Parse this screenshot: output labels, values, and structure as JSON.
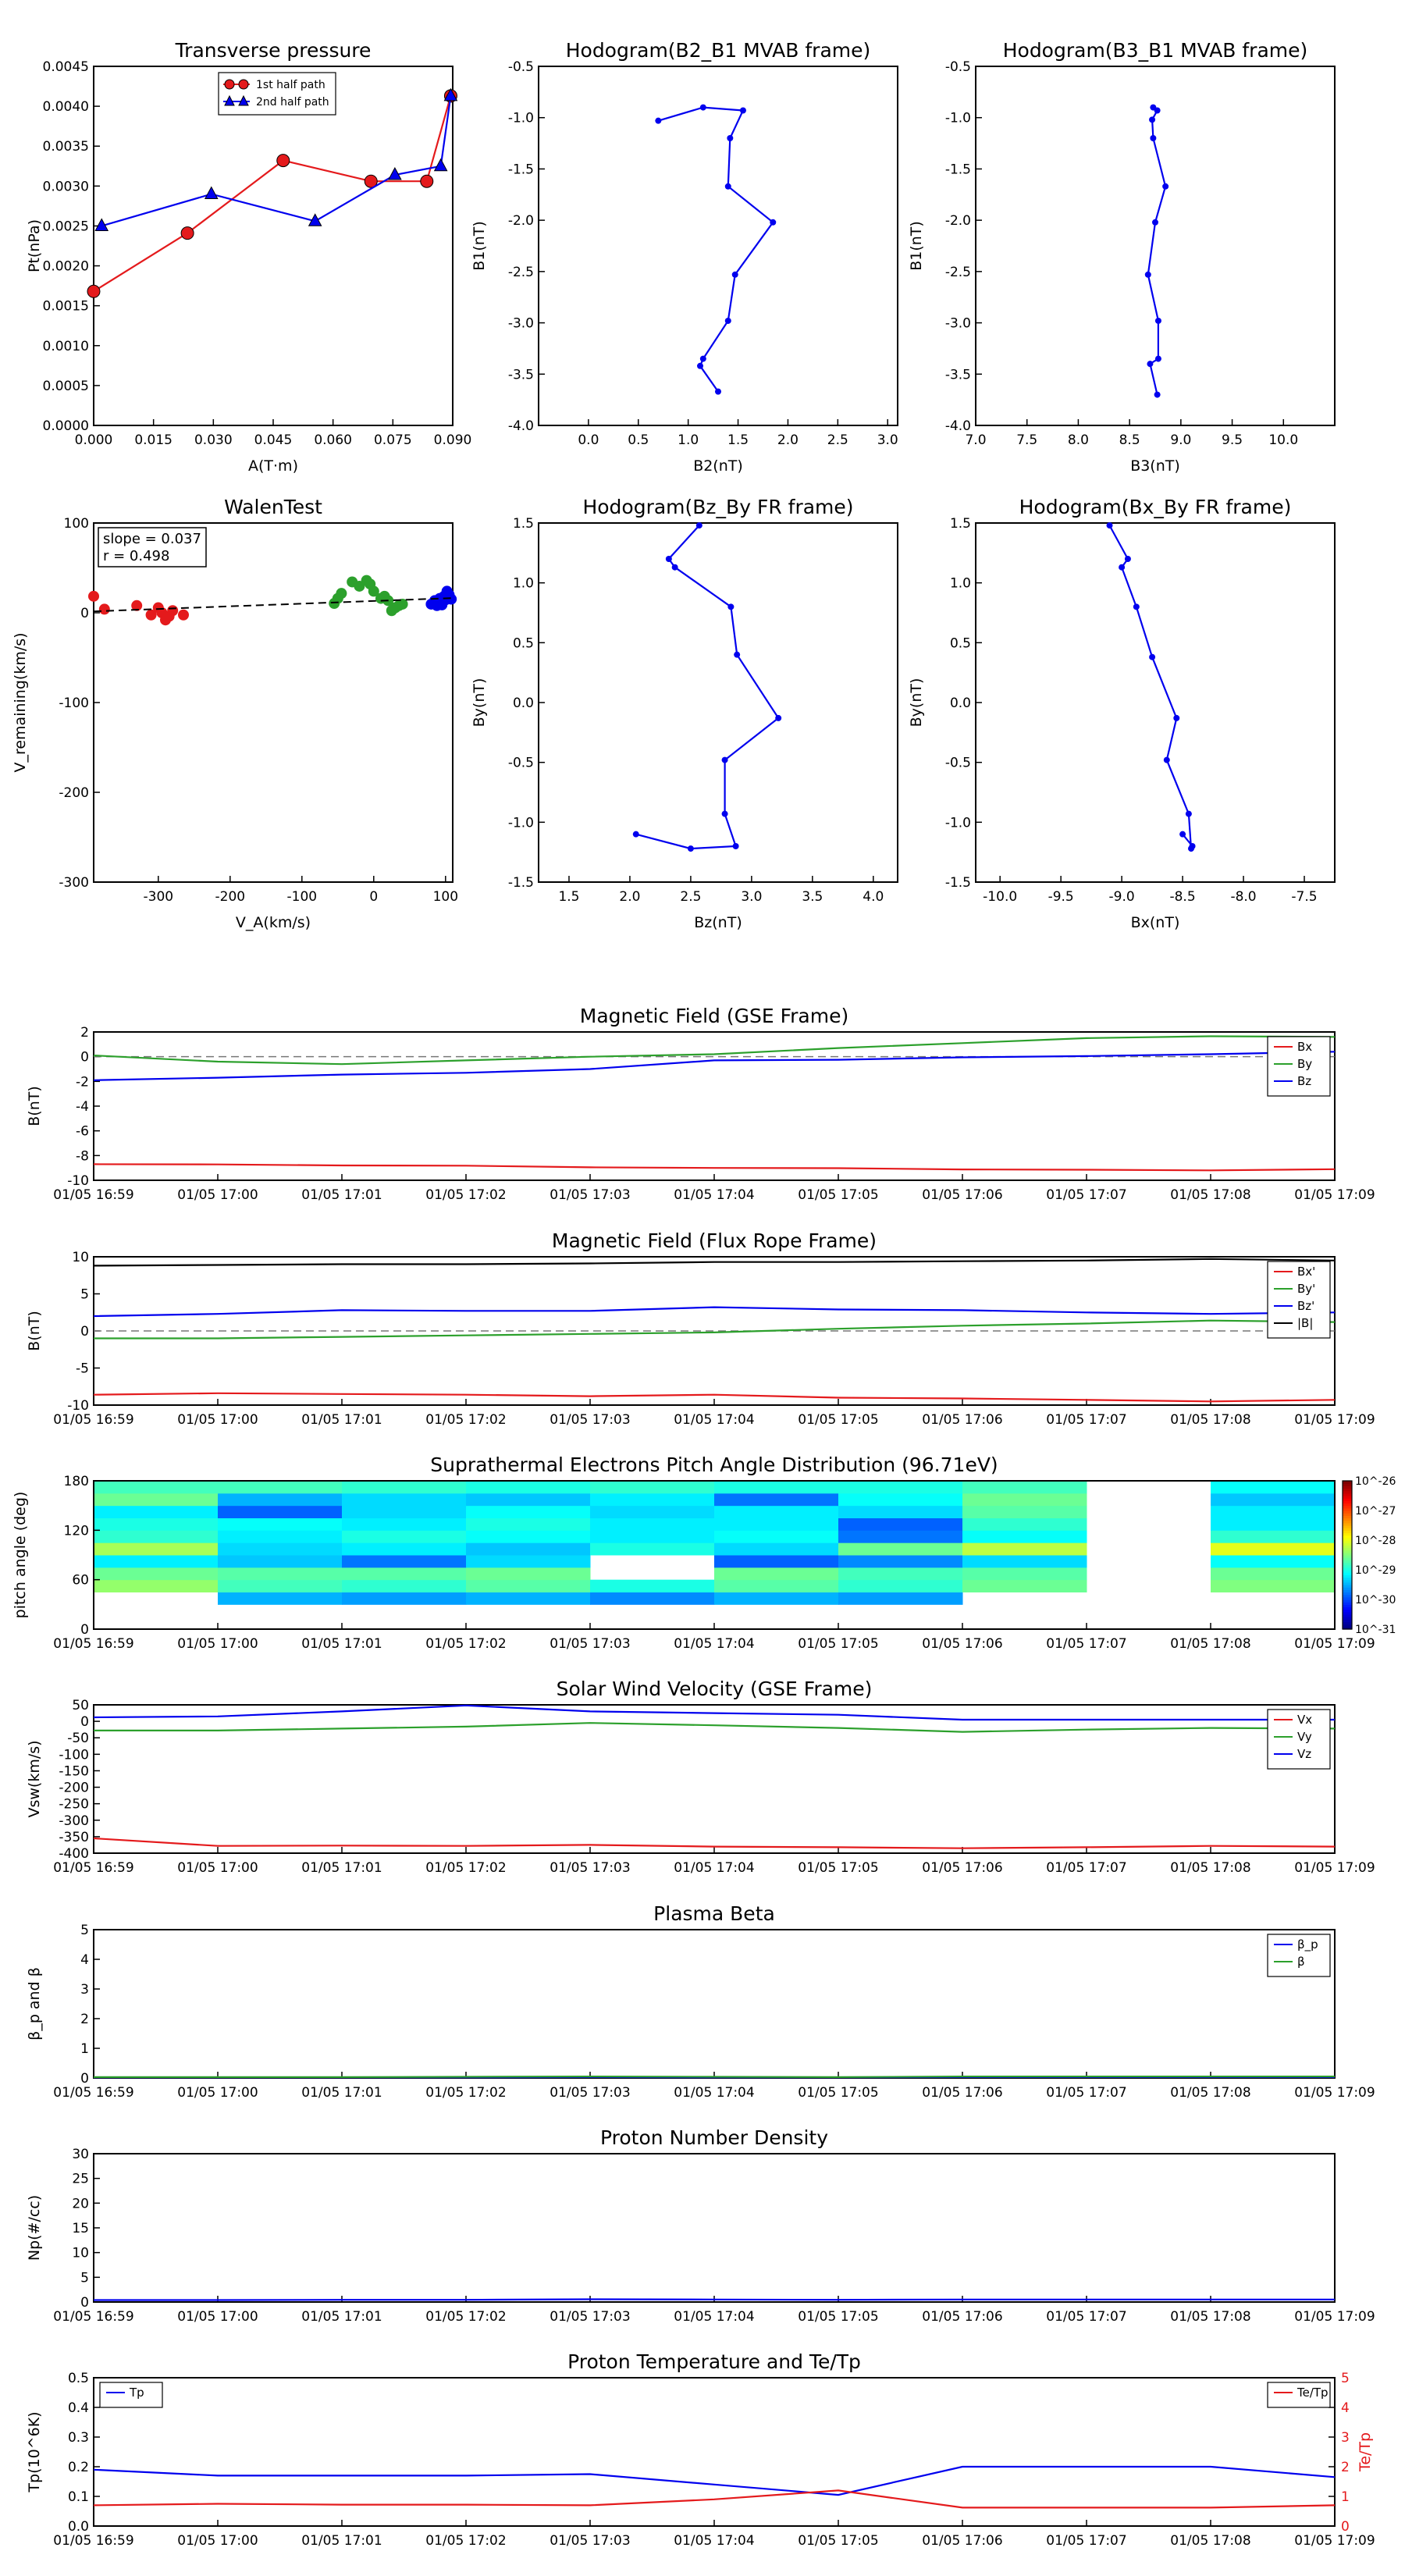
{
  "figure_title": "",
  "time_ticks": [
    "01/05 16:59",
    "01/05 17:00",
    "01/05 17:01",
    "01/05 17:02",
    "01/05 17:03",
    "01/05 17:04",
    "01/05 17:05",
    "01/05 17:06",
    "01/05 17:07",
    "01/05 17:08",
    "01/05 17:09"
  ],
  "chart_data": [
    {
      "id": "transverse-pressure",
      "type": "line",
      "title": "Transverse pressure",
      "xlabel": "A(T·m)",
      "ylabel": "Pt(nPa)",
      "xlim": [
        0,
        0.09
      ],
      "ylim": [
        0,
        0.0045
      ],
      "xticks": [
        "0.000",
        "0.015",
        "0.030",
        "0.045",
        "0.060",
        "0.075",
        "0.090"
      ],
      "yticks": [
        "0.0000",
        "0.0005",
        "0.0010",
        "0.0015",
        "0.0020",
        "0.0025",
        "0.0030",
        "0.0035",
        "0.0040",
        "0.0045"
      ],
      "legend_position": "top-center",
      "series": [
        {
          "name": "1st half path",
          "color": "#e41a1c",
          "marker": "circle",
          "x": [
            0.0,
            0.0235,
            0.0475,
            0.0695,
            0.0835,
            0.0895
          ],
          "y": [
            0.00168,
            0.00241,
            0.00332,
            0.00306,
            0.00306,
            0.00413
          ]
        },
        {
          "name": "2nd half path",
          "color": "#0000ee",
          "marker": "triangle",
          "x": [
            0.002,
            0.0295,
            0.0555,
            0.0755,
            0.087,
            0.0895
          ],
          "y": [
            0.0025,
            0.0029,
            0.00256,
            0.00314,
            0.00325,
            0.00413
          ]
        }
      ]
    },
    {
      "id": "hodogram-b2-b1",
      "type": "line",
      "title": "Hodogram(B2_B1 MVAB frame)",
      "xlabel": "B2(nT)",
      "ylabel": "B1(nT)",
      "xlim": [
        -0.5,
        3.1
      ],
      "ylim": [
        -4.0,
        -0.5
      ],
      "xticks": [
        "0.0",
        "0.5",
        "1.0",
        "1.5",
        "2.0",
        "2.5",
        "3.0"
      ],
      "yticks": [
        "-4.0",
        "-3.5",
        "-3.0",
        "-2.5",
        "-2.0",
        "-1.5",
        "-1.0",
        "-0.5"
      ],
      "series": [
        {
          "name": "",
          "color": "#0000ee",
          "marker": "dot",
          "x": [
            0.7,
            1.15,
            1.55,
            1.42,
            1.4,
            1.85,
            1.47,
            1.4,
            1.15,
            1.12,
            1.3
          ],
          "y": [
            -1.03,
            -0.9,
            -0.93,
            -1.2,
            -1.67,
            -2.02,
            -2.53,
            -2.98,
            -3.35,
            -3.42,
            -3.67
          ]
        }
      ]
    },
    {
      "id": "hodogram-b3-b1",
      "type": "line",
      "title": "Hodogram(B3_B1 MVAB frame)",
      "xlabel": "B3(nT)",
      "ylabel": "B1(nT)",
      "xlim": [
        7.0,
        10.5
      ],
      "ylim": [
        -4.0,
        -0.5
      ],
      "xticks": [
        "7.0",
        "7.5",
        "8.0",
        "8.5",
        "9.0",
        "9.5",
        "10.0"
      ],
      "yticks": [
        "-4.0",
        "-3.5",
        "-3.0",
        "-2.5",
        "-2.0",
        "-1.5",
        "-1.0",
        "-0.5"
      ],
      "series": [
        {
          "name": "",
          "color": "#0000ee",
          "marker": "dot",
          "x": [
            8.73,
            8.77,
            8.72,
            8.73,
            8.85,
            8.75,
            8.68,
            8.78,
            8.78,
            8.7,
            8.77
          ],
          "y": [
            -0.9,
            -0.93,
            -1.02,
            -1.2,
            -1.67,
            -2.02,
            -2.53,
            -2.98,
            -3.35,
            -3.4,
            -3.7
          ]
        }
      ]
    },
    {
      "id": "walen-test",
      "type": "scatter",
      "title": "WalenTest",
      "xlabel": "V_A(km/s)",
      "ylabel": "V_remaining(km/s)",
      "xlim": [
        -390,
        110
      ],
      "ylim": [
        -390,
        110
      ],
      "xticks": [
        "-300",
        "-200",
        "-100",
        "0",
        "100"
      ],
      "yticks": [
        "-300",
        "-200",
        "-100",
        "0",
        "100"
      ],
      "annotations": [
        "slope = 0.037",
        "r = 0.498"
      ],
      "fit_line": {
        "slope": 0.037,
        "intercept": 1.4,
        "color": "#000000",
        "style": "dashed"
      },
      "series": [
        {
          "name": "",
          "color": "#e41a1c",
          "x": [
            -390,
            -375,
            -330,
            -310,
            -300,
            -295,
            -290,
            -285,
            -280,
            -265
          ],
          "y": [
            8,
            -10,
            -5,
            -18,
            -8,
            -15,
            -25,
            -20,
            -12,
            -18
          ]
        },
        {
          "name": "",
          "color": "#2ca02c",
          "x": [
            -55,
            -50,
            -45,
            -30,
            -20,
            -10,
            -5,
            0,
            10,
            15,
            20,
            25,
            30,
            35,
            40
          ],
          "y": [
            -2,
            5,
            12,
            28,
            22,
            30,
            25,
            15,
            5,
            8,
            2,
            -12,
            -8,
            -5,
            -3
          ]
        },
        {
          "name": "",
          "color": "#0000ee",
          "x": [
            80,
            85,
            88,
            90,
            92,
            95,
            98,
            100,
            102,
            105,
            108
          ],
          "y": [
            -3,
            2,
            -5,
            0,
            5,
            -4,
            8,
            3,
            15,
            10,
            4
          ]
        }
      ]
    },
    {
      "id": "hodogram-bz-by",
      "type": "line",
      "title": "Hodogram(Bz_By FR frame)",
      "xlabel": "Bz(nT)",
      "ylabel": "By(nT)",
      "xlim": [
        1.25,
        4.2
      ],
      "ylim": [
        -1.5,
        1.5
      ],
      "xticks": [
        "1.5",
        "2.0",
        "2.5",
        "3.0",
        "3.5",
        "4.0"
      ],
      "yticks": [
        "-1.5",
        "-1.0",
        "-0.5",
        "0.0",
        "0.5",
        "1.0",
        "1.5"
      ],
      "series": [
        {
          "name": "",
          "color": "#0000ee",
          "marker": "dot",
          "x": [
            2.05,
            2.5,
            2.87,
            2.78,
            2.78,
            3.22,
            2.88,
            2.83,
            2.37,
            2.32,
            2.57
          ],
          "y": [
            -1.1,
            -1.22,
            -1.2,
            -0.93,
            -0.48,
            -0.13,
            0.4,
            0.8,
            1.13,
            1.2,
            1.48
          ]
        }
      ]
    },
    {
      "id": "hodogram-bx-by",
      "type": "line",
      "title": "Hodogram(Bx_By FR frame)",
      "xlabel": "Bx(nT)",
      "ylabel": "By(nT)",
      "xlim": [
        -10.2,
        -7.25
      ],
      "ylim": [
        -1.5,
        1.5
      ],
      "xticks": [
        "-10.0",
        "-9.5",
        "-9.0",
        "-8.5",
        "-8.0",
        "-7.5"
      ],
      "yticks": [
        "-1.5",
        "-1.0",
        "-0.5",
        "0.0",
        "0.5",
        "1.0",
        "1.5"
      ],
      "series": [
        {
          "name": "",
          "color": "#0000ee",
          "marker": "dot",
          "x": [
            -8.5,
            -8.42,
            -8.43,
            -8.45,
            -8.63,
            -8.55,
            -8.75,
            -8.88,
            -9.0,
            -8.95,
            -9.1
          ],
          "y": [
            -1.1,
            -1.2,
            -1.22,
            -0.93,
            -0.48,
            -0.13,
            0.38,
            0.8,
            1.13,
            1.2,
            1.48
          ]
        }
      ]
    },
    {
      "id": "magnetic-field-gse",
      "type": "line",
      "title": "Magnetic Field (GSE Frame)",
      "xlabel": "",
      "ylabel": "B(nT)",
      "ylim": [
        -10,
        2
      ],
      "yticks": [
        "-10",
        "-8",
        "-6",
        "-4",
        "-2",
        "0",
        "2"
      ],
      "x": [
        0,
        1,
        2,
        3,
        4,
        5,
        6,
        7,
        8,
        9,
        10
      ],
      "zero_line": true,
      "legend_position": "top-right",
      "series": [
        {
          "name": "Bx",
          "color": "#e41a1c",
          "values": [
            -8.7,
            -8.72,
            -8.8,
            -8.82,
            -8.95,
            -9.0,
            -9.02,
            -9.12,
            -9.15,
            -9.2,
            -9.1
          ]
        },
        {
          "name": "By",
          "color": "#2ca02c",
          "values": [
            0.1,
            -0.4,
            -0.6,
            -0.3,
            0.0,
            0.2,
            0.7,
            1.1,
            1.5,
            1.65,
            1.6
          ]
        },
        {
          "name": "Bz",
          "color": "#0000ee",
          "values": [
            -1.9,
            -1.7,
            -1.45,
            -1.3,
            -1.0,
            -0.3,
            -0.25,
            -0.05,
            0.05,
            0.2,
            0.4
          ]
        }
      ]
    },
    {
      "id": "magnetic-field-fr",
      "type": "line",
      "title": "Magnetic Field (Flux Rope Frame)",
      "xlabel": "",
      "ylabel": "B(nT)",
      "ylim": [
        -10,
        10
      ],
      "yticks": [
        "-10",
        "-5",
        "0",
        "5",
        "10"
      ],
      "x": [
        0,
        1,
        2,
        3,
        4,
        5,
        6,
        7,
        8,
        9,
        10
      ],
      "zero_line": true,
      "legend_position": "top-right",
      "series": [
        {
          "name": "Bx'",
          "color": "#e41a1c",
          "values": [
            -8.6,
            -8.4,
            -8.5,
            -8.6,
            -8.8,
            -8.6,
            -9.0,
            -9.1,
            -9.3,
            -9.5,
            -9.3
          ]
        },
        {
          "name": "By'",
          "color": "#2ca02c",
          "values": [
            -1.0,
            -1.0,
            -0.8,
            -0.6,
            -0.4,
            -0.2,
            0.3,
            0.7,
            1.0,
            1.4,
            1.2
          ]
        },
        {
          "name": "Bz'",
          "color": "#0000ee",
          "values": [
            2.0,
            2.3,
            2.8,
            2.7,
            2.7,
            3.2,
            2.9,
            2.8,
            2.5,
            2.3,
            2.5
          ]
        },
        {
          "name": "|B|",
          "color": "#000000",
          "values": [
            8.8,
            8.9,
            9.0,
            9.0,
            9.1,
            9.3,
            9.3,
            9.4,
            9.5,
            9.7,
            9.5
          ]
        }
      ]
    },
    {
      "id": "pitch-angle",
      "type": "heatmap",
      "title": "Suprathermal Electrons Pitch Angle Distribution (96.71eV)",
      "xlabel": "",
      "ylabel": "pitch angle (deg)",
      "ylim": [
        0,
        180
      ],
      "yticks": [
        "0",
        "60",
        "120",
        "180"
      ],
      "colorbar_ticks": [
        "10^-31",
        "10^-30",
        "10^-29",
        "10^-28",
        "10^-27",
        "10^-26"
      ],
      "time_bins": [
        0,
        1,
        2,
        3,
        4,
        5,
        6,
        7,
        8,
        9,
        10
      ],
      "angle_bins": [
        0,
        15,
        30,
        45,
        60,
        75,
        90,
        105,
        120,
        135,
        150,
        165,
        180
      ],
      "z": [
        [
          null,
          null,
          null,
          null,
          null,
          null,
          null,
          null,
          null,
          null
        ],
        [
          null,
          null,
          null,
          null,
          null,
          null,
          null,
          null,
          null,
          null
        ],
        [
          null,
          -29.5,
          -29.6,
          -29.5,
          -29.7,
          -29.5,
          -29.6,
          null,
          null,
          null
        ],
        [
          -28.4,
          -28.8,
          -28.9,
          -28.7,
          -29.0,
          -28.7,
          -28.9,
          -28.6,
          null,
          -28.5
        ],
        [
          -28.6,
          -28.7,
          -28.7,
          -28.6,
          null,
          -28.6,
          -28.8,
          -28.7,
          null,
          -28.6
        ],
        [
          -29.2,
          -29.4,
          -29.8,
          -29.3,
          null,
          -29.9,
          -29.7,
          -29.3,
          null,
          -29.1
        ],
        [
          -28.3,
          -29.3,
          -29.2,
          -29.4,
          -29.0,
          -29.3,
          -28.6,
          -28.2,
          null,
          -28.0
        ],
        [
          -28.9,
          -29.2,
          -29.0,
          -29.1,
          -29.2,
          -29.1,
          -29.8,
          -29.1,
          null,
          -28.9
        ],
        [
          -29.0,
          -29.1,
          -29.2,
          -29.0,
          -29.2,
          -29.2,
          -29.9,
          -28.9,
          null,
          -29.2
        ],
        [
          -29.2,
          -29.9,
          -29.3,
          -29.1,
          -29.3,
          -29.2,
          -29.3,
          -28.7,
          null,
          -29.2
        ],
        [
          -28.6,
          -29.5,
          -29.3,
          -29.4,
          -29.2,
          -29.8,
          -29.1,
          -28.6,
          null,
          -29.4
        ],
        [
          -28.8,
          -28.8,
          -28.9,
          -29.0,
          -28.9,
          -29.0,
          -29.0,
          -28.8,
          null,
          -29.1
        ]
      ]
    },
    {
      "id": "solar-wind-velocity",
      "type": "line",
      "title": "Solar Wind Velocity (GSE Frame)",
      "xlabel": "",
      "ylabel": "Vsw(km/s)",
      "ylim": [
        -400,
        50
      ],
      "yticks": [
        "-400",
        "-350",
        "-300",
        "-250",
        "-200",
        "-150",
        "-100",
        "-50",
        "0",
        "50"
      ],
      "x": [
        0,
        1,
        2,
        3,
        4,
        5,
        6,
        7,
        8,
        9,
        10
      ],
      "legend_position": "top-right",
      "series": [
        {
          "name": "Vx",
          "color": "#e41a1c",
          "values": [
            -355,
            -378,
            -377,
            -378,
            -375,
            -380,
            -382,
            -385,
            -382,
            -378,
            -380
          ]
        },
        {
          "name": "Vy",
          "color": "#2ca02c",
          "values": [
            -28,
            -28,
            -22,
            -16,
            -5,
            -12,
            -20,
            -32,
            -25,
            -20,
            -22
          ]
        },
        {
          "name": "Vz",
          "color": "#0000ee",
          "values": [
            12,
            15,
            30,
            48,
            30,
            25,
            20,
            5,
            5,
            5,
            5
          ]
        }
      ]
    },
    {
      "id": "plasma-beta",
      "type": "line",
      "title": "Plasma Beta",
      "xlabel": "",
      "ylabel": "β_p and β",
      "ylim": [
        0,
        5
      ],
      "yticks": [
        "0",
        "1",
        "2",
        "3",
        "4",
        "5"
      ],
      "x": [
        0,
        1,
        2,
        3,
        4,
        5,
        6,
        7,
        8,
        9,
        10
      ],
      "legend_position": "top-right",
      "series": [
        {
          "name": "β_p",
          "color": "#0000ee",
          "values": [
            0.02,
            0.02,
            0.02,
            0.02,
            0.03,
            0.02,
            0.02,
            0.03,
            0.03,
            0.03,
            0.03
          ]
        },
        {
          "name": "β",
          "color": "#2ca02c",
          "values": [
            0.03,
            0.03,
            0.03,
            0.04,
            0.05,
            0.04,
            0.03,
            0.05,
            0.05,
            0.05,
            0.05
          ]
        }
      ]
    },
    {
      "id": "proton-density",
      "type": "line",
      "title": "Proton Number Density",
      "xlabel": "",
      "ylabel": "Np(#/cc)",
      "ylim": [
        0,
        30
      ],
      "yticks": [
        "0",
        "5",
        "10",
        "15",
        "20",
        "25",
        "30"
      ],
      "x": [
        0,
        1,
        2,
        3,
        4,
        5,
        6,
        7,
        8,
        9,
        10
      ],
      "series": [
        {
          "name": "",
          "color": "#0000ee",
          "values": [
            0.4,
            0.4,
            0.45,
            0.45,
            0.55,
            0.5,
            0.45,
            0.5,
            0.5,
            0.5,
            0.5
          ]
        }
      ]
    },
    {
      "id": "proton-temperature",
      "type": "line",
      "title": "Proton Temperature and Te/Tp",
      "xlabel": "",
      "ylabel": "Tp(10^6K)",
      "ylim": [
        0,
        0.5
      ],
      "yticks": [
        "0.0",
        "0.1",
        "0.2",
        "0.3",
        "0.4",
        "0.5"
      ],
      "y2label": "Te/Tp",
      "y2lim": [
        0,
        5
      ],
      "y2ticks": [
        "0",
        "1",
        "2",
        "3",
        "4",
        "5"
      ],
      "x": [
        0,
        1,
        2,
        3,
        4,
        5,
        6,
        7,
        8,
        9,
        10
      ],
      "series": [
        {
          "name": "Tp",
          "color": "#0000ee",
          "axis": "left",
          "legend_position": "top-left",
          "values": [
            0.19,
            0.17,
            0.17,
            0.17,
            0.175,
            0.14,
            0.105,
            0.2,
            0.2,
            0.2,
            0.165
          ]
        },
        {
          "name": "Te/Tp",
          "color": "#e41a1c",
          "axis": "right",
          "legend_position": "top-right",
          "values": [
            0.7,
            0.75,
            0.72,
            0.72,
            0.7,
            0.9,
            1.2,
            0.62,
            0.62,
            0.62,
            0.7
          ]
        }
      ]
    }
  ]
}
